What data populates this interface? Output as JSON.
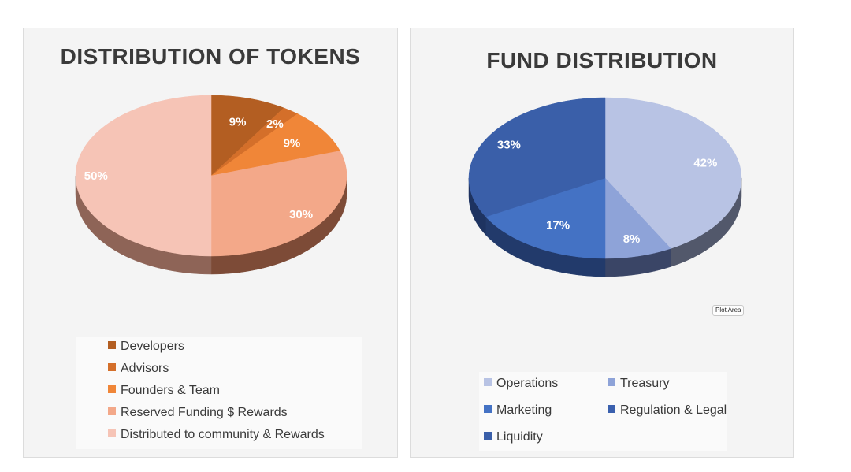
{
  "chart_data": [
    {
      "type": "pie",
      "title": "DISTRIBUTION OF TOKENS",
      "categories": [
        "Developers",
        "Advisors",
        "Founders & Team",
        "Reserved Funding $ Rewards",
        "Distributed to community & Rewards"
      ],
      "values": [
        9,
        2,
        9,
        30,
        50
      ],
      "labels": [
        "9%",
        "2%",
        "9%",
        "30%",
        "50%"
      ],
      "colors": [
        "#b35e22",
        "#d46f2a",
        "#f08638",
        "#f3a889",
        "#f6c4b6"
      ],
      "side_colors": [
        "#6e3a1a",
        "#7a3f1c",
        "#8a4a22",
        "#7d4b37",
        "#8e6457"
      ],
      "legend_position": "bottom",
      "three_d": true
    },
    {
      "type": "pie",
      "title": "FUND DISTRIBUTION",
      "categories": [
        "Operations",
        "Treasury",
        "Marketing",
        "Regulation & Legal",
        "Liquidity"
      ],
      "values": [
        42,
        8,
        17,
        0,
        33
      ],
      "labels": [
        "42%",
        "8%",
        "17%",
        "",
        "33%"
      ],
      "colors": [
        "#b8c3e4",
        "#8ea3d8",
        "#4472c4",
        "#3a60ae",
        "#3a5fa9"
      ],
      "side_colors": [
        "#52586b",
        "#3a4566",
        "#223a6b",
        "#1f3462",
        "#1e3360"
      ],
      "legend_position": "bottom",
      "three_d": true,
      "tooltip": "Plot Area"
    }
  ]
}
